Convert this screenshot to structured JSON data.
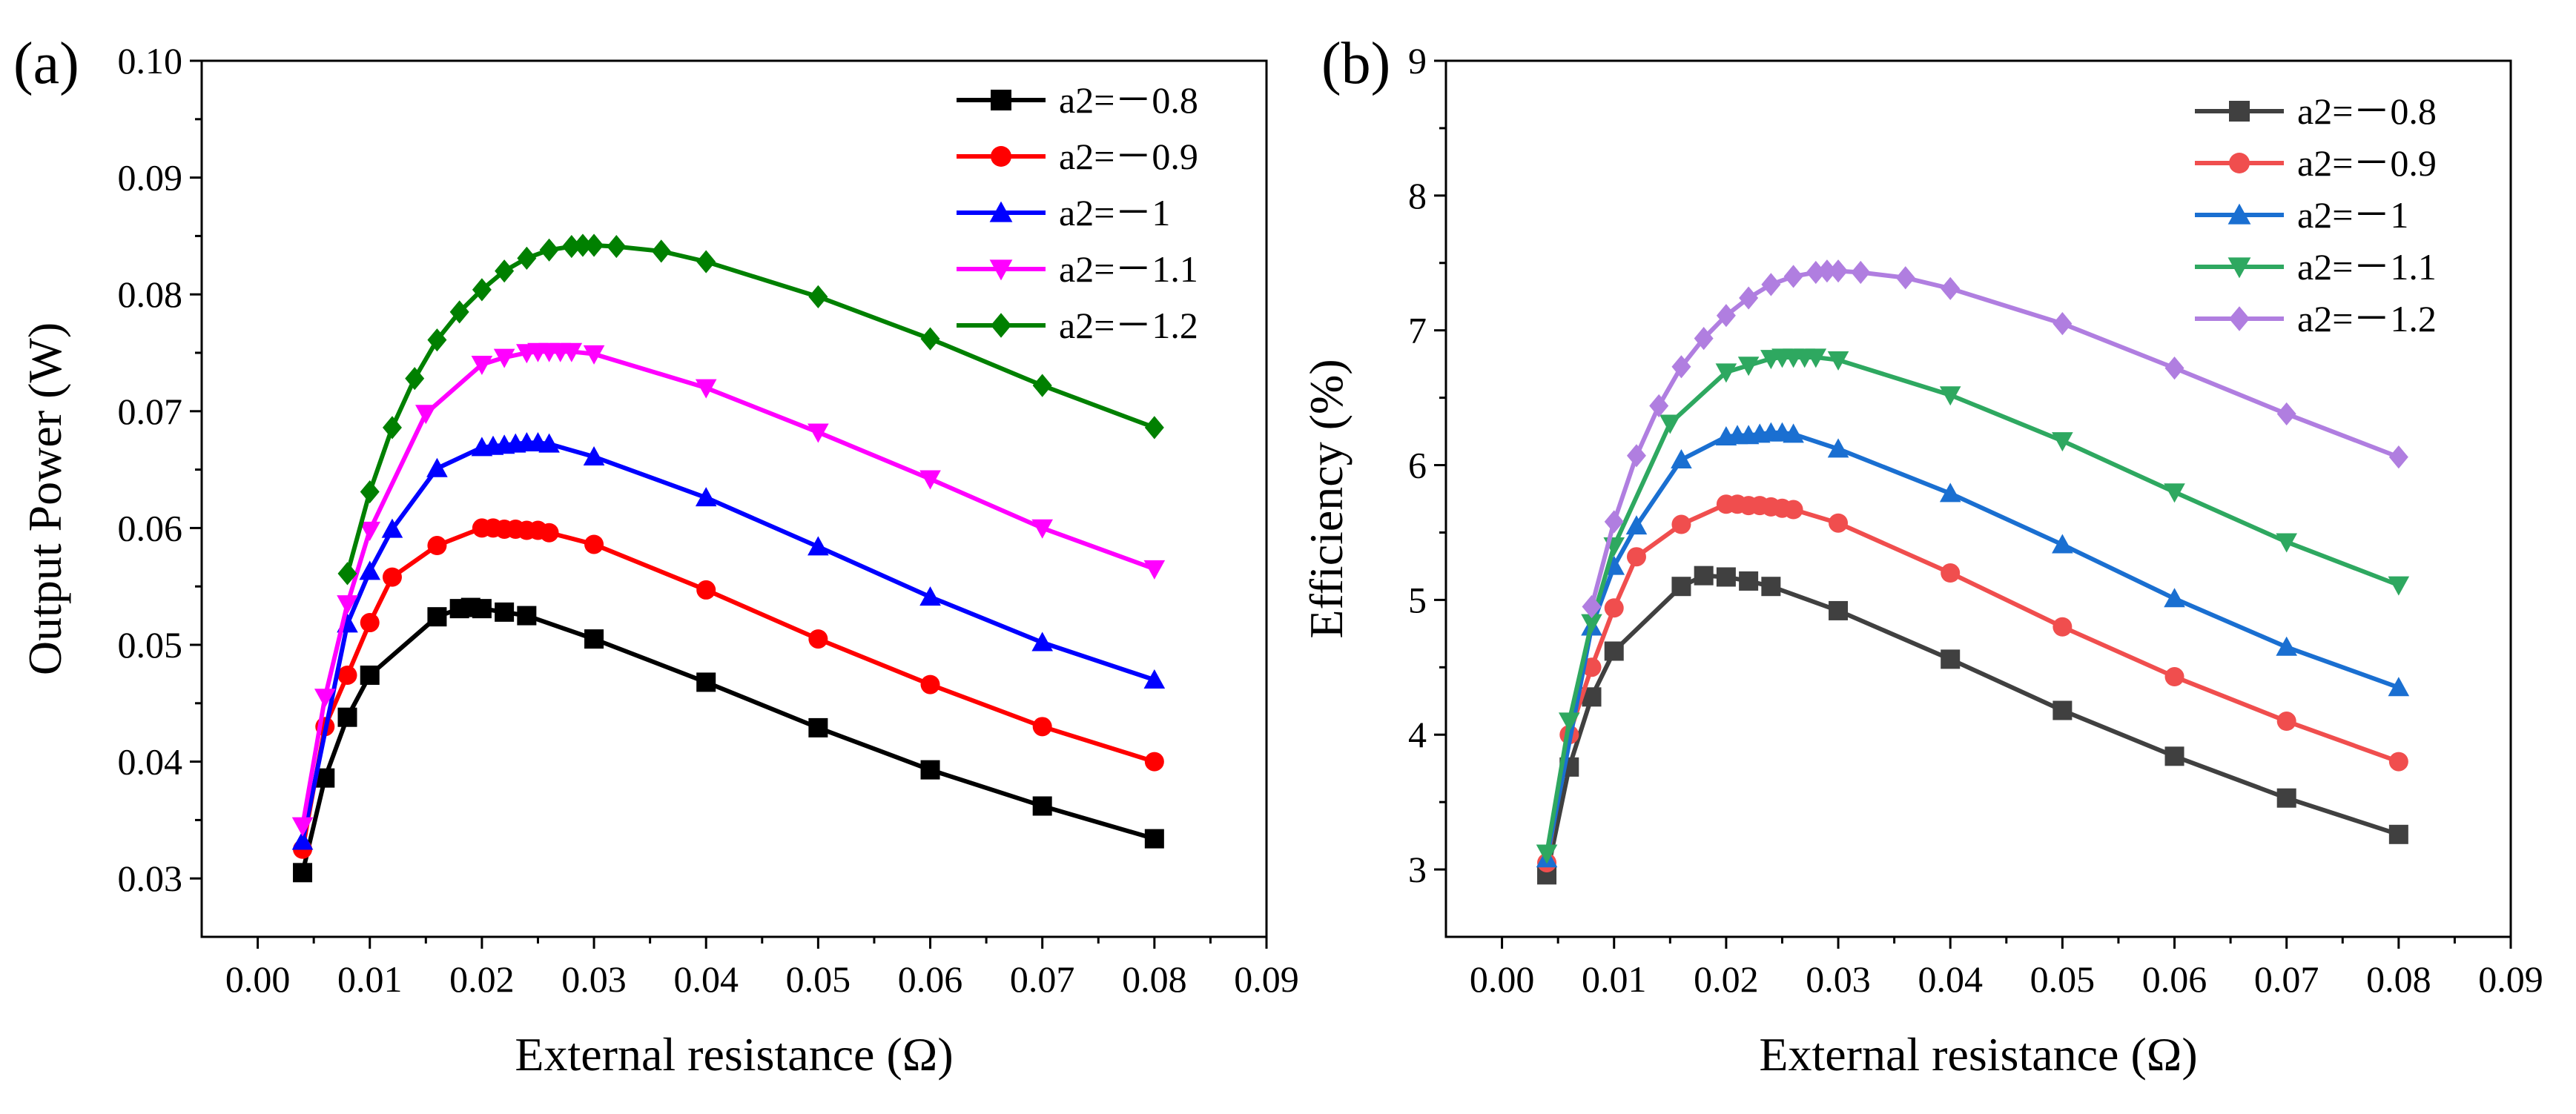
{
  "chart_data": [
    {
      "panel_label": "(a)",
      "type": "line",
      "xlabel": "External resistance (Ω)",
      "ylabel": "Output Power (W)",
      "xlim": [
        -0.005,
        0.09
      ],
      "ylim": [
        0.025,
        0.1
      ],
      "x_ticks": [
        0.0,
        0.01,
        0.02,
        0.03,
        0.04,
        0.05,
        0.06,
        0.07,
        0.08,
        0.09
      ],
      "x_tick_labels": [
        "0.00",
        "0.01",
        "0.02",
        "0.03",
        "0.04",
        "0.05",
        "0.06",
        "0.07",
        "0.08",
        "0.09"
      ],
      "y_ticks": [
        0.03,
        0.04,
        0.05,
        0.06,
        0.07,
        0.08,
        0.09,
        0.1
      ],
      "y_tick_labels": [
        "0.03",
        "0.04",
        "0.05",
        "0.06",
        "0.07",
        "0.08",
        "0.09",
        "0.10"
      ],
      "legend_position": "top-right",
      "series": [
        {
          "name": "a2=－0.8",
          "color": "#000000",
          "marker": "square",
          "x": [
            0.004,
            0.006,
            0.008,
            0.01,
            0.016,
            0.018,
            0.019,
            0.02,
            0.022,
            0.024,
            0.03,
            0.04,
            0.05,
            0.06,
            0.07,
            0.08
          ],
          "y": [
            0.0305,
            0.0386,
            0.0438,
            0.0474,
            0.0524,
            0.0531,
            0.0532,
            0.0531,
            0.0528,
            0.0525,
            0.0505,
            0.0468,
            0.0429,
            0.0393,
            0.0362,
            0.0334
          ]
        },
        {
          "name": "a2=－0.9",
          "color": "#ff0000",
          "marker": "circle",
          "x": [
            0.004,
            0.006,
            0.008,
            0.01,
            0.012,
            0.016,
            0.02,
            0.021,
            0.022,
            0.023,
            0.024,
            0.025,
            0.026,
            0.03,
            0.04,
            0.05,
            0.06,
            0.07,
            0.08
          ],
          "y": [
            0.0325,
            0.043,
            0.0474,
            0.0519,
            0.0558,
            0.0585,
            0.06,
            0.06,
            0.0599,
            0.0599,
            0.0598,
            0.0598,
            0.0596,
            0.0586,
            0.0547,
            0.0505,
            0.0466,
            0.043,
            0.04
          ]
        },
        {
          "name": "a2=－1",
          "color": "#0000ff",
          "marker": "triangle-up",
          "x": [
            0.004,
            0.008,
            0.01,
            0.012,
            0.016,
            0.02,
            0.021,
            0.022,
            0.023,
            0.024,
            0.025,
            0.026,
            0.03,
            0.04,
            0.05,
            0.06,
            0.07,
            0.08
          ],
          "y": [
            0.0332,
            0.0518,
            0.0563,
            0.0599,
            0.0651,
            0.0669,
            0.067,
            0.0671,
            0.0672,
            0.0673,
            0.0673,
            0.0672,
            0.0661,
            0.0626,
            0.0584,
            0.0541,
            0.0502,
            0.047
          ]
        },
        {
          "name": "a2=－1.1",
          "color": "#ff00ff",
          "marker": "triangle-down",
          "x": [
            0.004,
            0.006,
            0.008,
            0.01,
            0.015,
            0.02,
            0.022,
            0.024,
            0.025,
            0.026,
            0.027,
            0.028,
            0.03,
            0.04,
            0.05,
            0.06,
            0.07,
            0.08
          ],
          "y": [
            0.0345,
            0.0455,
            0.0535,
            0.0598,
            0.0698,
            0.074,
            0.0746,
            0.075,
            0.0751,
            0.0751,
            0.0751,
            0.0751,
            0.0749,
            0.072,
            0.0682,
            0.0642,
            0.06,
            0.0565
          ]
        },
        {
          "name": "a2=－1.2",
          "color": "#008000",
          "marker": "diamond",
          "x": [
            0.008,
            0.01,
            0.012,
            0.014,
            0.016,
            0.018,
            0.02,
            0.022,
            0.024,
            0.026,
            0.028,
            0.029,
            0.03,
            0.032,
            0.036,
            0.04,
            0.05,
            0.06,
            0.07,
            0.08
          ],
          "y": [
            0.0561,
            0.0631,
            0.0686,
            0.0728,
            0.0761,
            0.0785,
            0.0804,
            0.082,
            0.0831,
            0.0838,
            0.0841,
            0.0842,
            0.0842,
            0.0841,
            0.0837,
            0.0828,
            0.0798,
            0.0762,
            0.0722,
            0.0686
          ]
        }
      ]
    },
    {
      "panel_label": "(b)",
      "type": "line",
      "xlabel": "External resistance (Ω)",
      "ylabel": "Efficiency (%)",
      "xlim": [
        -0.005,
        0.09
      ],
      "ylim": [
        2.5,
        9
      ],
      "x_ticks": [
        0.0,
        0.01,
        0.02,
        0.03,
        0.04,
        0.05,
        0.06,
        0.07,
        0.08,
        0.09
      ],
      "x_tick_labels": [
        "0.00",
        "0.01",
        "0.02",
        "0.03",
        "0.04",
        "0.05",
        "0.06",
        "0.07",
        "0.08",
        "0.09"
      ],
      "y_ticks": [
        3,
        4,
        5,
        6,
        7,
        8,
        9
      ],
      "y_tick_labels": [
        "3",
        "4",
        "5",
        "6",
        "7",
        "8",
        "9"
      ],
      "legend_position": "top-right",
      "series": [
        {
          "name": "a2=－0.8",
          "color": "#404040",
          "marker": "square",
          "x": [
            0.004,
            0.006,
            0.008,
            0.01,
            0.016,
            0.018,
            0.02,
            0.022,
            0.024,
            0.03,
            0.04,
            0.05,
            0.06,
            0.07,
            0.08
          ],
          "y": [
            2.96,
            3.76,
            4.28,
            4.62,
            5.1,
            5.18,
            5.17,
            5.14,
            5.1,
            4.92,
            4.56,
            4.18,
            3.84,
            3.53,
            3.26
          ]
        },
        {
          "name": "a2=－0.9",
          "color": "#f04e4e",
          "marker": "circle",
          "x": [
            0.004,
            0.006,
            0.008,
            0.01,
            0.012,
            0.016,
            0.02,
            0.021,
            0.022,
            0.023,
            0.024,
            0.025,
            0.026,
            0.03,
            0.04,
            0.05,
            0.06,
            0.07,
            0.08
          ],
          "y": [
            3.05,
            4.0,
            4.5,
            4.94,
            5.32,
            5.56,
            5.71,
            5.71,
            5.7,
            5.7,
            5.69,
            5.68,
            5.67,
            5.57,
            5.2,
            4.8,
            4.43,
            4.1,
            3.8
          ]
        },
        {
          "name": "a2=－1",
          "color": "#1a6fd1",
          "marker": "triangle-up",
          "x": [
            0.004,
            0.008,
            0.01,
            0.012,
            0.016,
            0.02,
            0.021,
            0.022,
            0.023,
            0.024,
            0.025,
            0.026,
            0.03,
            0.04,
            0.05,
            0.06,
            0.07,
            0.08
          ],
          "y": [
            3.08,
            4.8,
            5.25,
            5.55,
            6.04,
            6.21,
            6.22,
            6.22,
            6.23,
            6.24,
            6.24,
            6.23,
            6.12,
            5.79,
            5.41,
            5.01,
            4.65,
            4.35
          ]
        },
        {
          "name": "a2=－1.1",
          "color": "#2ea860",
          "marker": "triangle-down",
          "x": [
            0.004,
            0.006,
            0.008,
            0.01,
            0.015,
            0.02,
            0.022,
            0.024,
            0.025,
            0.026,
            0.027,
            0.028,
            0.03,
            0.04,
            0.05,
            0.06,
            0.07,
            0.08
          ],
          "y": [
            3.12,
            4.1,
            4.83,
            5.4,
            6.31,
            6.69,
            6.74,
            6.79,
            6.8,
            6.8,
            6.8,
            6.8,
            6.78,
            6.52,
            6.18,
            5.8,
            5.43,
            5.11
          ]
        },
        {
          "name": "a2=－1.2",
          "color": "#b07ee0",
          "marker": "diamond",
          "x": [
            0.008,
            0.01,
            0.012,
            0.014,
            0.016,
            0.018,
            0.02,
            0.022,
            0.024,
            0.026,
            0.028,
            0.029,
            0.03,
            0.032,
            0.036,
            0.04,
            0.05,
            0.06,
            0.07,
            0.08
          ],
          "y": [
            4.95,
            5.58,
            6.07,
            6.44,
            6.73,
            6.94,
            7.11,
            7.24,
            7.34,
            7.4,
            7.43,
            7.44,
            7.44,
            7.43,
            7.39,
            7.31,
            7.05,
            6.72,
            6.38,
            6.06
          ]
        }
      ]
    }
  ]
}
